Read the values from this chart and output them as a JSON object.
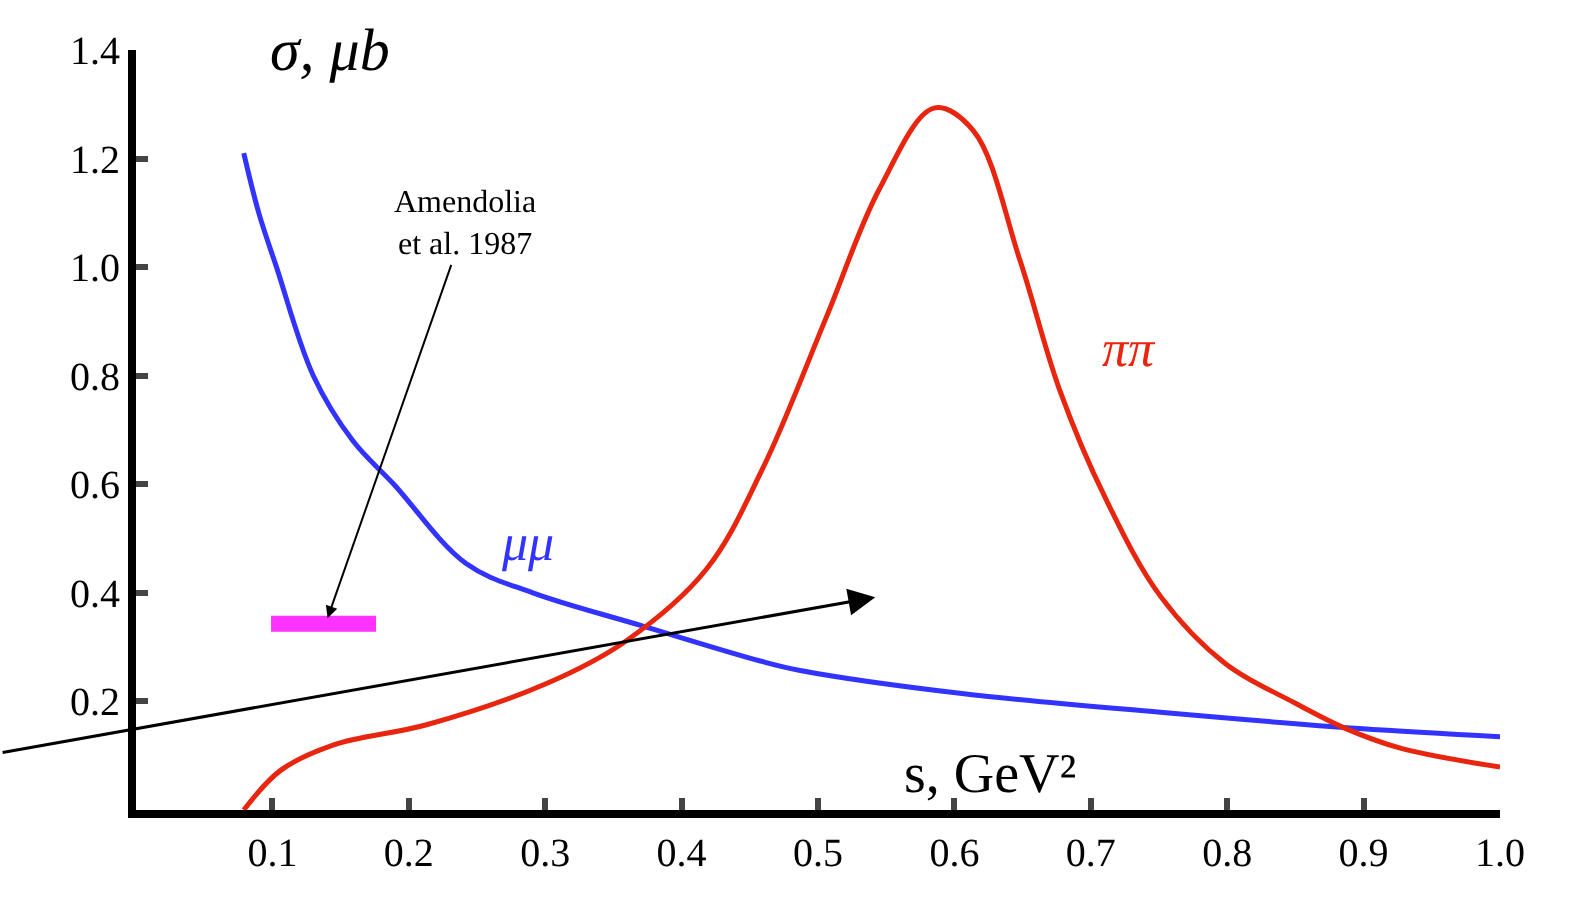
{
  "chart_data": {
    "type": "line",
    "xlabel": "s, GeV²",
    "ylabel": "σ, μb",
    "xlim": [
      0,
      1.0
    ],
    "ylim": [
      0,
      1.4
    ],
    "xticks": [
      0.1,
      0.2,
      0.3,
      0.4,
      0.5,
      0.6,
      0.7,
      0.8,
      0.9,
      {
        "value": 1,
        "label": "1.0"
      }
    ],
    "yticks": [
      0.2,
      0.4,
      0.6,
      0.8,
      {
        "value": 1,
        "label": "1.0"
      },
      1.2,
      1.4
    ],
    "legend": false,
    "marker": "none",
    "line_style": "solid",
    "series": [
      {
        "name": "μμ",
        "color": "#3333ff",
        "x": [
          0.079,
          0.09,
          0.103,
          0.13,
          0.159,
          0.189,
          0.242,
          0.291,
          0.37,
          0.457,
          0.487,
          0.604,
          0.751,
          0.897,
          1.0
        ],
        "values": [
          1.21,
          1.1,
          1.0,
          0.8,
          0.68,
          0.6,
          0.454,
          0.4,
          0.34,
          0.275,
          0.257,
          0.215,
          0.18,
          0.15,
          0.135
        ]
      },
      {
        "name": "ππ",
        "color": "#e8260f",
        "x": [
          0.079,
          0.106,
          0.145,
          0.213,
          0.301,
          0.359,
          0.418,
          0.46,
          0.506,
          0.545,
          0.585,
          0.614,
          0.648,
          0.677,
          0.711,
          0.751,
          0.799,
          0.849,
          0.887,
          0.927,
          1.0
        ],
        "values": [
          0,
          0.073,
          0.12,
          0.157,
          0.233,
          0.311,
          0.443,
          0.632,
          0.907,
          1.144,
          1.293,
          1.251,
          1.013,
          0.775,
          0.573,
          0.394,
          0.269,
          0.198,
          0.15,
          0.114,
          0.079
        ]
      },
      {
        "color": "#ff33ff",
        "x": [
          0.099,
          0.176
        ],
        "values": [
          0.343,
          0.343
        ]
      }
    ],
    "annotations": [
      {
        "text": "Amendolia\net al. 1987",
        "x": 0.139,
        "y": 0.343
      }
    ]
  }
}
